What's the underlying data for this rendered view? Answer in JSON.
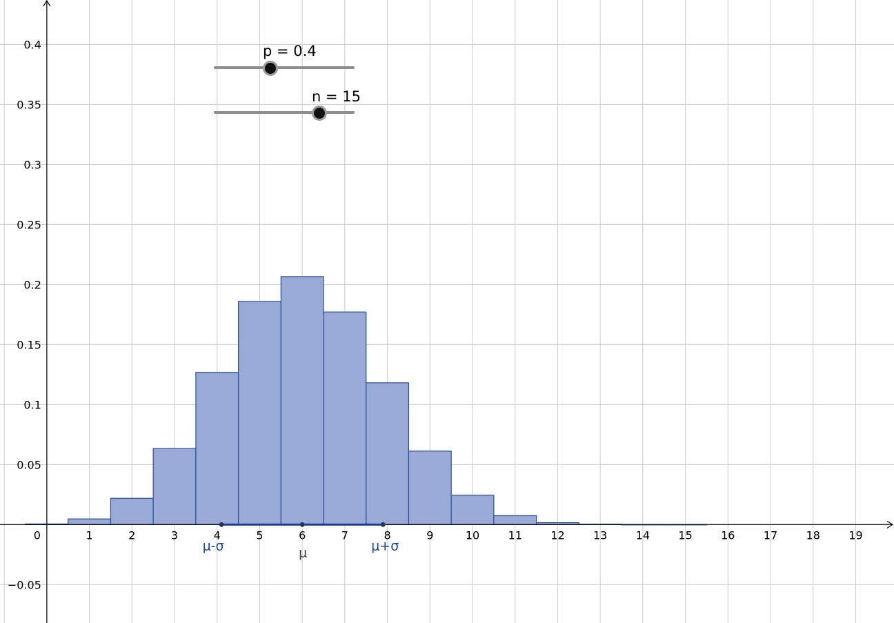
{
  "sliders": {
    "p": {
      "label": "p = 0.4",
      "min": 0,
      "max": 1,
      "value": 0.4
    },
    "n": {
      "label": "n = 15",
      "min": 0,
      "max": 20,
      "value": 15
    }
  },
  "annotations": {
    "mu": "μ",
    "mu_minus_sigma": "μ-σ",
    "mu_plus_sigma": "μ+σ"
  },
  "colors": {
    "bar_fill": "#99aad6",
    "bar_stroke": "#2b4d9c",
    "interval": "#1d3f8c",
    "annotation_blue": "#1a4597",
    "annotation_mu": "#444444",
    "grid": "#cccccc",
    "axis": "#000000"
  },
  "chart_data": {
    "type": "bar",
    "title": "",
    "xlabel": "",
    "ylabel": "",
    "xlim": [
      -1.1,
      19.9
    ],
    "ylim": [
      -0.082,
      0.437
    ],
    "x_ticks": [
      "0",
      "1",
      "2",
      "3",
      "4",
      "5",
      "6",
      "7",
      "8",
      "9",
      "10",
      "11",
      "12",
      "13",
      "14",
      "15",
      "16",
      "17",
      "18",
      "19"
    ],
    "y_ticks": [
      "−0.05",
      "0",
      "0.05",
      "0.1",
      "0.15",
      "0.2",
      "0.25",
      "0.3",
      "0.35",
      "0.4"
    ],
    "grid": true,
    "categories": [
      0,
      1,
      2,
      3,
      4,
      5,
      6,
      7,
      8,
      9,
      10,
      11,
      12,
      13,
      14,
      15
    ],
    "values": [
      0.0005,
      0.0047,
      0.0219,
      0.0634,
      0.1268,
      0.1859,
      0.2066,
      0.1771,
      0.1181,
      0.0612,
      0.0245,
      0.0074,
      0.0016,
      0.0003,
      0.0,
      0.0
    ],
    "mean": 6,
    "sigma": 1.897,
    "interval": [
      4.103,
      7.897
    ]
  }
}
